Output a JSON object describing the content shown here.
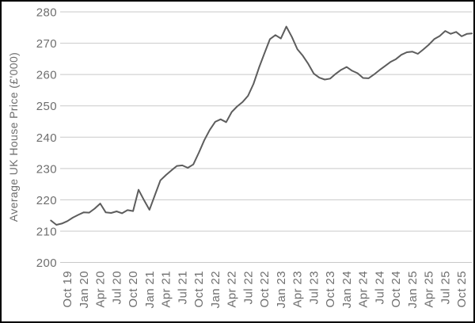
{
  "chart_data": {
    "type": "line",
    "title": "",
    "xlabel": "",
    "ylabel": "Average UK House Price (£'000)",
    "ylim": [
      200,
      280
    ],
    "y_ticks": [
      280,
      270,
      260,
      250,
      240,
      230,
      220,
      210,
      200
    ],
    "x_tick_labels": [
      "Oct 19",
      "Jan 20",
      "Apr 20",
      "Jul 20",
      "Oct 20",
      "Jan 21",
      "Apr 21",
      "Jul 21",
      "Oct 21",
      "Jan 22",
      "Apr 22",
      "Jul 22",
      "Oct 22",
      "Jan 23",
      "Apr 23",
      "Jul 23",
      "Oct 23",
      "Jan 24",
      "Apr 24",
      "Jul 24",
      "Oct 24",
      "Jan 25",
      "Apr 25",
      "Jul 25",
      "Oct 25"
    ],
    "x_tick_month_indices": [
      3,
      6,
      9,
      12,
      15,
      18,
      21,
      24,
      27,
      30,
      33,
      36,
      39,
      42,
      45,
      48,
      51,
      54,
      57,
      60,
      63,
      66,
      69,
      72,
      75
    ],
    "grid": "horizontal",
    "legend": "none",
    "frequency": "monthly",
    "series": [
      {
        "name": "Average UK house price",
        "months": [
          "Jul 19",
          "Aug 19",
          "Sep 19",
          "Oct 19",
          "Nov 19",
          "Dec 19",
          "Jan 20",
          "Feb 20",
          "Mar 20",
          "Apr 20",
          "May 20",
          "Jun 20",
          "Jul 20",
          "Aug 20",
          "Sep 20",
          "Oct 20",
          "Nov 20",
          "Dec 20",
          "Jan 21",
          "Feb 21",
          "Mar 21",
          "Apr 21",
          "May 21",
          "Jun 21",
          "Jul 21",
          "Aug 21",
          "Sep 21",
          "Oct 21",
          "Nov 21",
          "Dec 21",
          "Jan 22",
          "Feb 22",
          "Mar 22",
          "Apr 22",
          "May 22",
          "Jun 22",
          "Jul 22",
          "Aug 22",
          "Sep 22",
          "Oct 22",
          "Nov 22",
          "Dec 22",
          "Jan 23",
          "Feb 23",
          "Mar 23",
          "Apr 23",
          "May 23",
          "Jun 23",
          "Jul 23",
          "Aug 23",
          "Sep 23",
          "Oct 23",
          "Nov 23",
          "Dec 23",
          "Jan 24",
          "Feb 24",
          "Mar 24",
          "Apr 24",
          "May 24",
          "Jun 24",
          "Jul 24",
          "Aug 24",
          "Sep 24",
          "Oct 24",
          "Nov 24",
          "Dec 24",
          "Jan 25",
          "Feb 25",
          "Mar 25",
          "Apr 25",
          "May 25",
          "Jun 25",
          "Jul 25",
          "Aug 25",
          "Sep 25",
          "Oct 25",
          "Nov 25",
          "Dec 25"
        ],
        "values": [
          213.4,
          212.0,
          212.4,
          213.2,
          214.3,
          215.2,
          216.0,
          215.9,
          217.2,
          218.8,
          216.0,
          215.8,
          216.3,
          215.7,
          216.7,
          216.4,
          223.2,
          219.9,
          216.8,
          221.5,
          226.2,
          227.9,
          229.4,
          230.8,
          231.0,
          230.2,
          231.3,
          235.0,
          239.0,
          242.3,
          244.9,
          245.7,
          244.8,
          248.0,
          249.8,
          251.2,
          253.2,
          257.0,
          262.2,
          266.8,
          271.3,
          272.6,
          271.5,
          275.3,
          272.0,
          268.1,
          266.0,
          263.4,
          260.3,
          259.0,
          258.4,
          258.7,
          260.2,
          261.5,
          262.4,
          261.2,
          260.4,
          258.9,
          258.8,
          260.0,
          261.4,
          262.7,
          264.0,
          264.9,
          266.3,
          267.1,
          267.3,
          266.6,
          268.0,
          269.5,
          271.3,
          272.3,
          273.9,
          273.0,
          273.6,
          272.2,
          273.0,
          273.1
        ]
      }
    ],
    "colors": {
      "line": "#5d5d5d",
      "grid": "#c9c9c9",
      "text": "#6e6e6e",
      "background": "#ffffff"
    }
  }
}
